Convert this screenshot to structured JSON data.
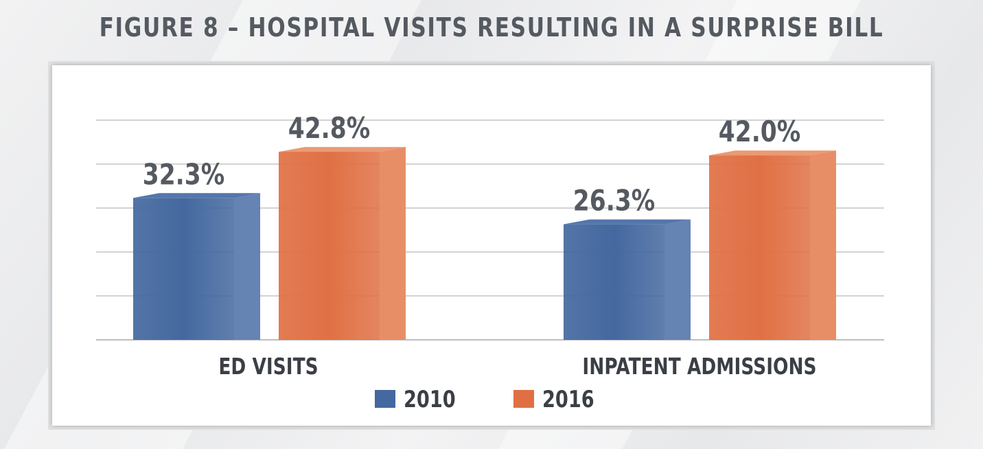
{
  "title": "FIGURE 8 – HOSPITAL VISITS RESULTING IN A SURPRISE BILL",
  "chart_data": {
    "type": "bar",
    "categories": [
      "ED VISITS",
      "INPATENT ADMISSIONS"
    ],
    "series": [
      {
        "name": "2010",
        "values": [
          32.3,
          26.3
        ],
        "labels": [
          "32.3%",
          "26.3%"
        ],
        "color": "#44689f",
        "side_color": "#6583b3",
        "top_color": "#5476ab"
      },
      {
        "name": "2016",
        "values": [
          42.8,
          42.0
        ],
        "labels": [
          "42.8%",
          "42.0%"
        ],
        "color": "#e07044",
        "side_color": "#e88e66",
        "top_color": "#eb9a72"
      }
    ],
    "ylim": [
      0,
      50
    ],
    "grid": true,
    "legend": "bottom",
    "xlabel": "",
    "ylabel": ""
  }
}
